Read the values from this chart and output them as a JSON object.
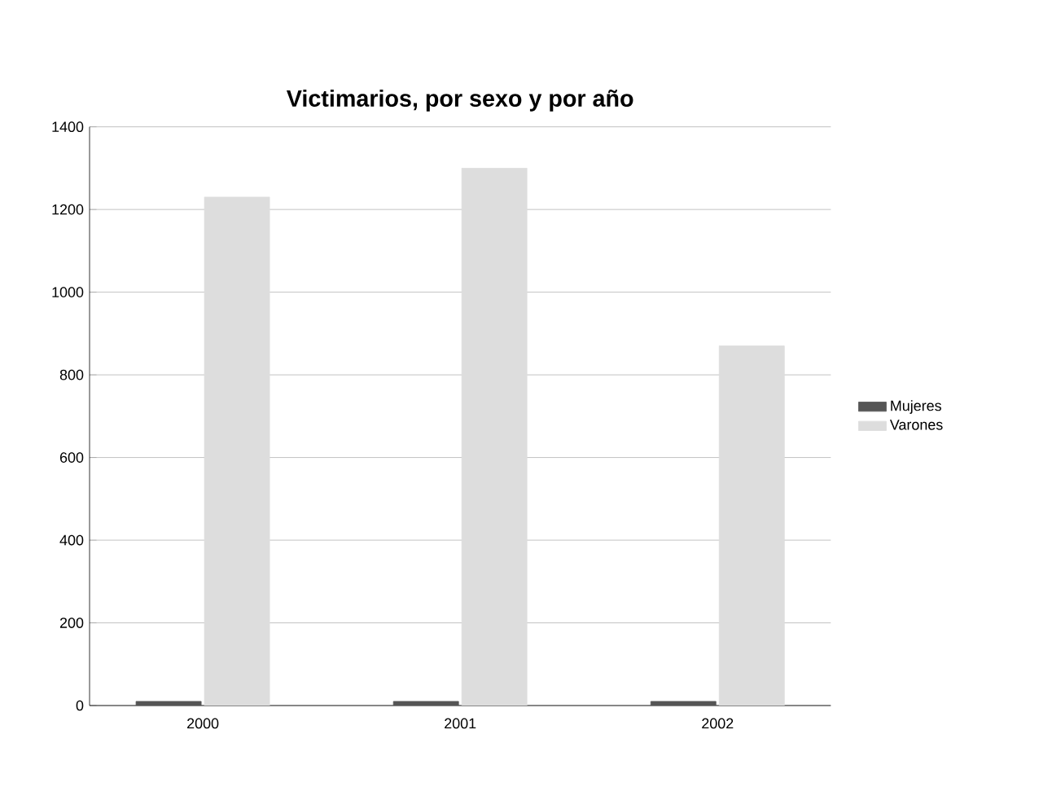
{
  "chart_data": {
    "type": "bar",
    "title": "Victimarios, por sexo y por año",
    "categories": [
      "2000",
      "2001",
      "2002"
    ],
    "series": [
      {
        "name": "Mujeres",
        "color": "#555555",
        "values": [
          10,
          10,
          10
        ]
      },
      {
        "name": "Varones",
        "color": "#dddddd",
        "values": [
          1230,
          1300,
          870
        ]
      }
    ],
    "ylim": [
      0,
      1400
    ],
    "yticks": [
      0,
      200,
      400,
      600,
      800,
      1000,
      1200,
      1400
    ],
    "grid": "y",
    "legend": "right"
  }
}
